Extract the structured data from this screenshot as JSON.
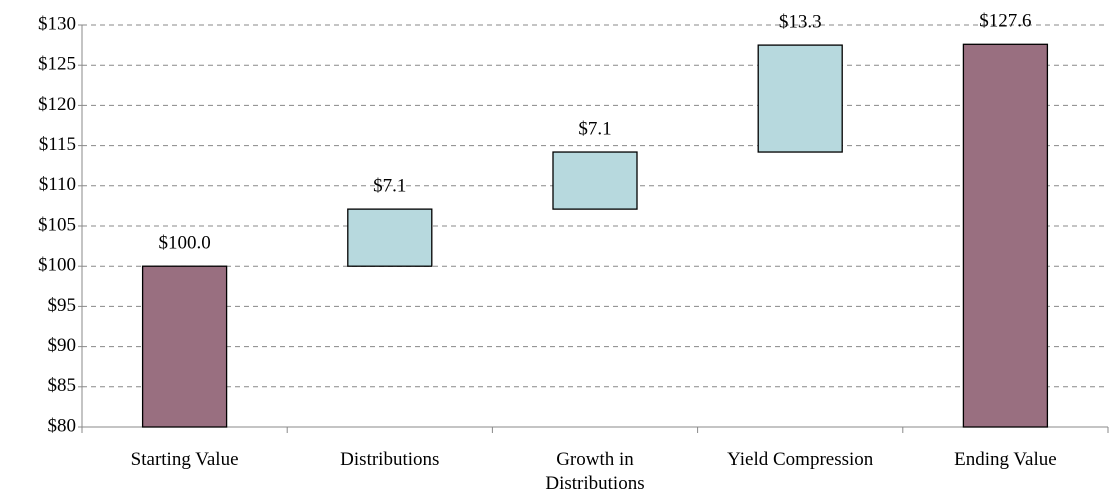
{
  "chart_data": {
    "type": "waterfall",
    "categories": [
      "Starting Value",
      "Distributions",
      "Growth in Distributions",
      "Yield Compression",
      "Ending Value"
    ],
    "values": [
      100.0,
      7.1,
      7.1,
      13.3,
      127.6
    ],
    "value_labels": [
      "$100.0",
      "$7.1",
      "$7.1",
      "$13.3",
      "$127.6"
    ],
    "totals": [
      true,
      false,
      false,
      false,
      true
    ],
    "colors": {
      "total": "#996f80",
      "delta": "#b7d9de"
    },
    "ylim": [
      80,
      130
    ],
    "yticks": [
      {
        "value": 80,
        "label": "$80"
      },
      {
        "value": 85,
        "label": "$85"
      },
      {
        "value": 90,
        "label": "$90"
      },
      {
        "value": 95,
        "label": "$95"
      },
      {
        "value": 100,
        "label": "$100"
      },
      {
        "value": 105,
        "label": "$105"
      },
      {
        "value": 110,
        "label": "$110"
      },
      {
        "value": 115,
        "label": "$115"
      },
      {
        "value": 120,
        "label": "$120"
      },
      {
        "value": 125,
        "label": "$125"
      },
      {
        "value": 130,
        "label": "$130"
      }
    ],
    "grid": true
  }
}
